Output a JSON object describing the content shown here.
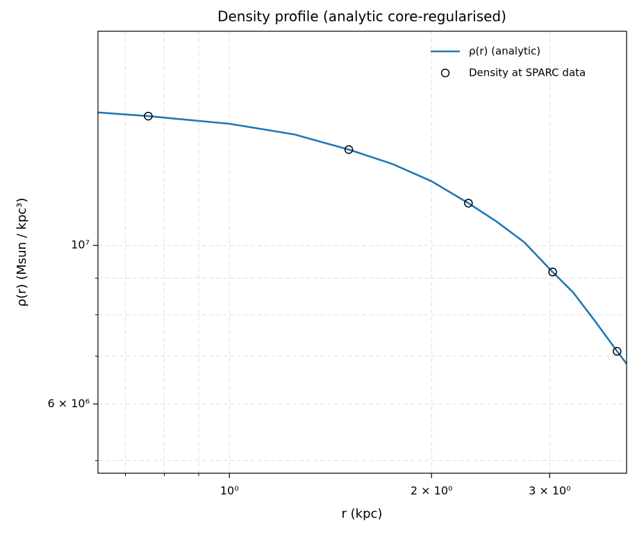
{
  "chart_data": {
    "type": "line",
    "title": "Density profile (analytic core-regularised)",
    "xlabel": "r (kpc)",
    "ylabel": "ρ(r) (Msun / kpc³)",
    "xscale": "log",
    "yscale": "log",
    "xlim": [
      0.637,
      3.905
    ],
    "ylim": [
      4800000,
      19940000
    ],
    "xticks": [
      {
        "value": 1,
        "label": "10⁰"
      },
      {
        "value": 2,
        "label": "2 × 10⁰"
      },
      {
        "value": 3,
        "label": "3 × 10⁰"
      }
    ],
    "xticks_minor": [
      0.7,
      0.8,
      0.9
    ],
    "yticks": [
      {
        "value": 6000000,
        "label": "6 × 10⁶"
      },
      {
        "value": 10000000,
        "label": "10⁷"
      }
    ],
    "yticks_minor": [
      5000000,
      7000000,
      8000000,
      9000000
    ],
    "grid": true,
    "legend": "upper right",
    "series": [
      {
        "name": "ρ(r) (analytic)",
        "type": "line",
        "color": "#1f77b4",
        "x": [
          0.637,
          0.757,
          1.0,
          1.25,
          1.506,
          1.75,
          2.0,
          2.27,
          2.5,
          2.75,
          3.03,
          3.25,
          3.5,
          3.78,
          3.905
        ],
        "values": [
          15350000,
          15170000,
          14800000,
          14300000,
          13620000,
          13000000,
          12300000,
          11460000,
          10800000,
          10100000,
          9180000,
          8600000,
          7850000,
          7110000,
          6830000
        ]
      },
      {
        "name": "Density at SPARC data",
        "type": "scatter",
        "color": "#000000",
        "x": [
          0.757,
          1.506,
          2.27,
          3.03,
          3.78
        ],
        "values": [
          15170000,
          13620000,
          11460000,
          9180000,
          7110000
        ]
      }
    ]
  }
}
